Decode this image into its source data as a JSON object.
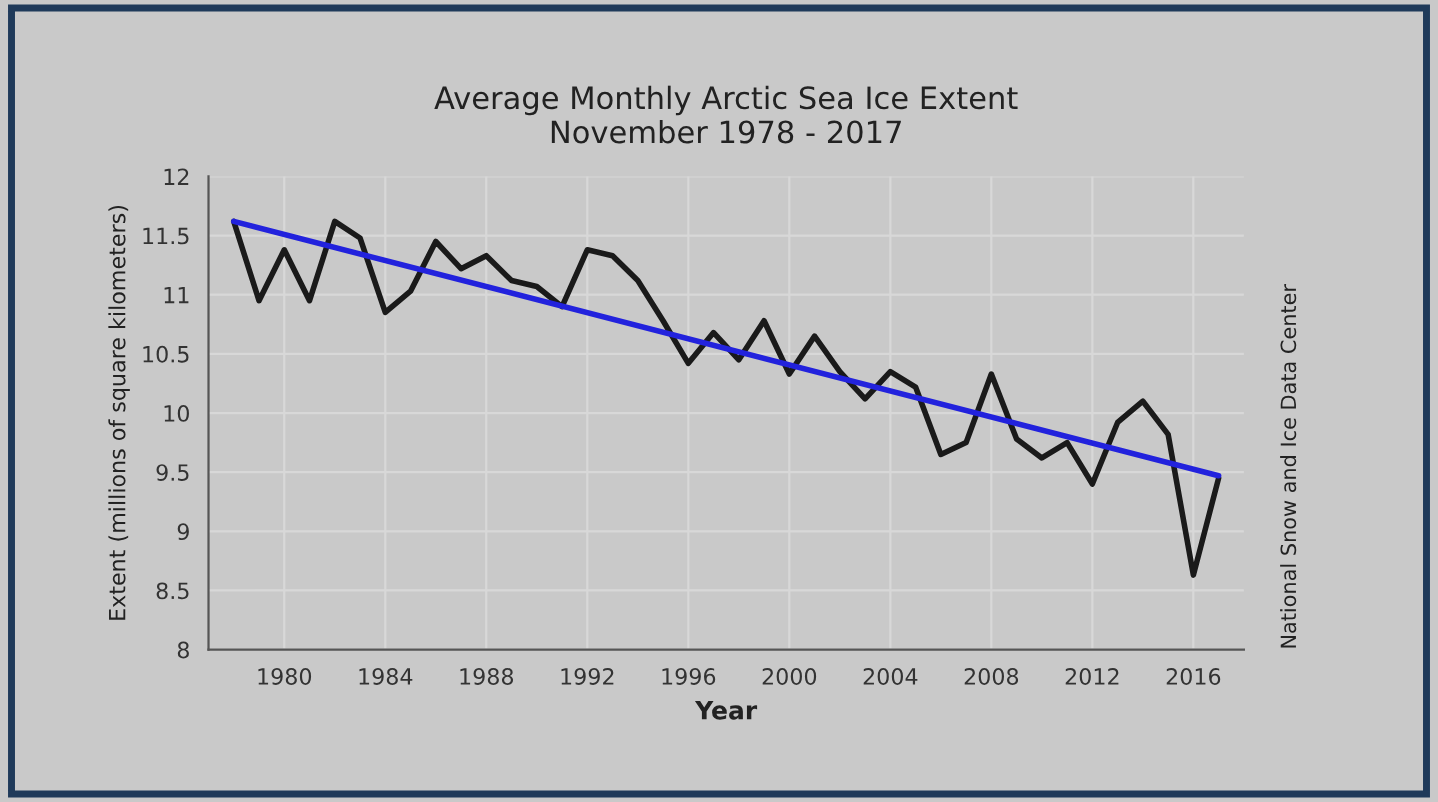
{
  "chart_data": {
    "type": "line",
    "title": "Average Monthly Arctic Sea Ice Extent\nNovember 1978 - 2017",
    "xlabel": "Year",
    "ylabel": "Extent (millions of square kilometers)",
    "annotations": [
      "National Snow and Ice Data Center"
    ],
    "x": [
      1978,
      1979,
      1980,
      1981,
      1982,
      1983,
      1984,
      1985,
      1986,
      1987,
      1988,
      1989,
      1990,
      1991,
      1992,
      1993,
      1994,
      1995,
      1996,
      1997,
      1998,
      1999,
      2000,
      2001,
      2002,
      2003,
      2004,
      2005,
      2006,
      2007,
      2008,
      2009,
      2010,
      2011,
      2012,
      2013,
      2014,
      2015,
      2016,
      2017
    ],
    "series": [
      {
        "color": "#1a1a1a",
        "values": [
          11.62,
          10.95,
          11.38,
          10.95,
          11.62,
          11.48,
          10.85,
          11.03,
          11.45,
          11.22,
          11.33,
          11.12,
          11.07,
          10.9,
          11.38,
          11.33,
          11.12,
          10.78,
          10.42,
          10.68,
          10.45,
          10.78,
          10.33,
          10.65,
          10.35,
          10.12,
          10.35,
          10.22,
          9.65,
          9.75,
          10.33,
          9.78,
          9.62,
          9.75,
          9.4,
          9.92,
          10.1,
          9.82,
          8.63,
          9.45
        ]
      },
      {
        "color": "#2222dd",
        "x": [
          1978,
          2017
        ],
        "values": [
          11.62,
          9.47
        ]
      }
    ],
    "xlim": [
      1977,
      2018
    ],
    "xticks": [
      1980,
      1984,
      1988,
      1992,
      1996,
      2000,
      2004,
      2008,
      2012,
      2016
    ],
    "ylim": [
      8,
      12
    ],
    "yticks": [
      8,
      8.5,
      9,
      9.5,
      10,
      10.5,
      11,
      11.5,
      12
    ],
    "grid": true,
    "marker": "none",
    "line_style": "solid",
    "legend": false
  }
}
